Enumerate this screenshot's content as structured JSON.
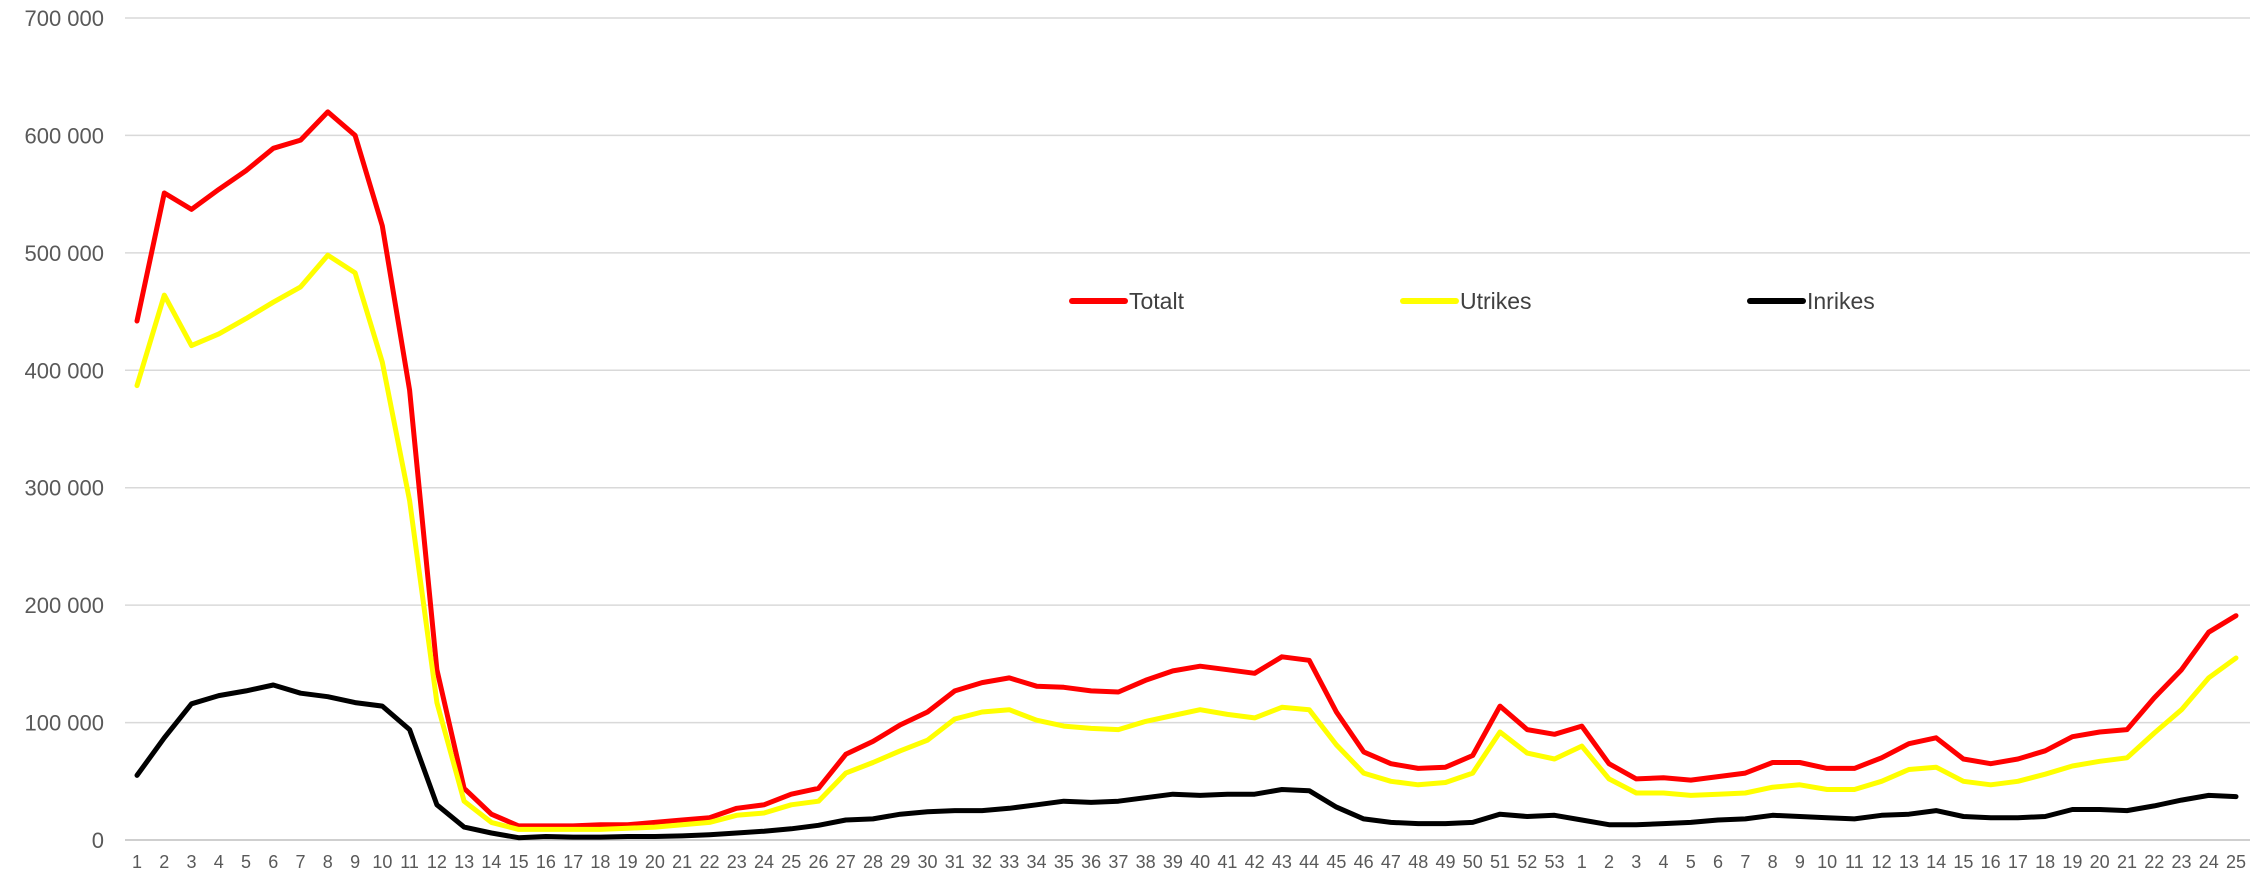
{
  "chart_data": {
    "type": "line",
    "title": "",
    "xlabel": "",
    "ylabel": "",
    "ylim": [
      0,
      700000
    ],
    "yticks": [
      0,
      100000,
      200000,
      300000,
      400000,
      500000,
      600000,
      700000
    ],
    "ytick_labels": [
      "0",
      "100 000",
      "200 000",
      "300 000",
      "400 000",
      "500 000",
      "600 000",
      "700 000"
    ],
    "grid": true,
    "legend_position": "top-center",
    "categories": [
      "1",
      "2",
      "3",
      "4",
      "5",
      "6",
      "7",
      "8",
      "9",
      "10",
      "11",
      "12",
      "13",
      "14",
      "15",
      "16",
      "17",
      "18",
      "19",
      "20",
      "21",
      "22",
      "23",
      "24",
      "25",
      "26",
      "27",
      "28",
      "29",
      "30",
      "31",
      "32",
      "33",
      "34",
      "35",
      "36",
      "37",
      "38",
      "39",
      "40",
      "41",
      "42",
      "43",
      "44",
      "45",
      "46",
      "47",
      "48",
      "49",
      "50",
      "51",
      "52",
      "53",
      "1",
      "2",
      "3",
      "4",
      "5",
      "6",
      "7",
      "8",
      "9",
      "10",
      "11",
      "12",
      "13",
      "14",
      "15",
      "16",
      "17",
      "18",
      "19",
      "20",
      "21",
      "22",
      "23",
      "24",
      "25"
    ],
    "series": [
      {
        "name": "Totalt",
        "color": "#ff0000",
        "values": [
          442000,
          551000,
          537000,
          554000,
          570000,
          589000,
          596000,
          620000,
          600000,
          523000,
          383000,
          145000,
          44000,
          22000,
          12000,
          12000,
          12000,
          13000,
          13000,
          15000,
          17000,
          19000,
          27000,
          30000,
          39000,
          44000,
          73000,
          84000,
          98000,
          109000,
          127000,
          134000,
          138000,
          131000,
          130000,
          127000,
          126000,
          136000,
          144000,
          148000,
          145000,
          142000,
          156000,
          153000,
          109000,
          75000,
          65000,
          61000,
          62000,
          72000,
          114000,
          94000,
          90000,
          97000,
          65000,
          52000,
          53000,
          51000,
          54000,
          57000,
          66000,
          66000,
          61000,
          61000,
          70000,
          82000,
          87000,
          69000,
          65000,
          69000,
          76000,
          88000,
          92000,
          94000,
          121000,
          145000,
          177000,
          191000
        ]
      },
      {
        "name": "Utrikes",
        "color": "#ffff00",
        "values": [
          387000,
          464000,
          421000,
          431000,
          444000,
          458000,
          471000,
          498000,
          483000,
          407000,
          289000,
          117000,
          33000,
          15000,
          9000,
          9000,
          9000,
          9000,
          10000,
          11000,
          13000,
          15000,
          21000,
          23000,
          30000,
          33000,
          57000,
          66000,
          76000,
          85000,
          103000,
          109000,
          111000,
          102000,
          97000,
          95000,
          94000,
          101000,
          106000,
          111000,
          107000,
          104000,
          113000,
          111000,
          81000,
          57000,
          50000,
          47000,
          49000,
          57000,
          92000,
          74000,
          69000,
          80000,
          52000,
          40000,
          40000,
          38000,
          39000,
          40000,
          45000,
          47000,
          43000,
          43000,
          50000,
          60000,
          62000,
          50000,
          47000,
          50000,
          56000,
          63000,
          67000,
          70000,
          91000,
          111000,
          138000,
          155000
        ]
      },
      {
        "name": "Inrikes",
        "color": "#000000",
        "values": [
          55000,
          87000,
          116000,
          123000,
          127000,
          132000,
          125000,
          122000,
          117000,
          114000,
          94000,
          30000,
          11000,
          6000,
          2000,
          3000,
          2500,
          2500,
          3000,
          3000,
          3500,
          4500,
          6000,
          7500,
          9500,
          12500,
          17000,
          18000,
          22000,
          24000,
          25000,
          25000,
          27000,
          30000,
          33000,
          32000,
          33000,
          36000,
          39000,
          38000,
          39000,
          39000,
          43000,
          42000,
          28000,
          18000,
          15000,
          14000,
          14000,
          15000,
          22000,
          20000,
          21000,
          17000,
          13000,
          13000,
          14000,
          15000,
          17000,
          18000,
          21000,
          20000,
          19000,
          18000,
          21000,
          22000,
          25000,
          20000,
          19000,
          19000,
          20000,
          26000,
          26000,
          25000,
          29000,
          34000,
          38000,
          37000
        ]
      }
    ]
  }
}
